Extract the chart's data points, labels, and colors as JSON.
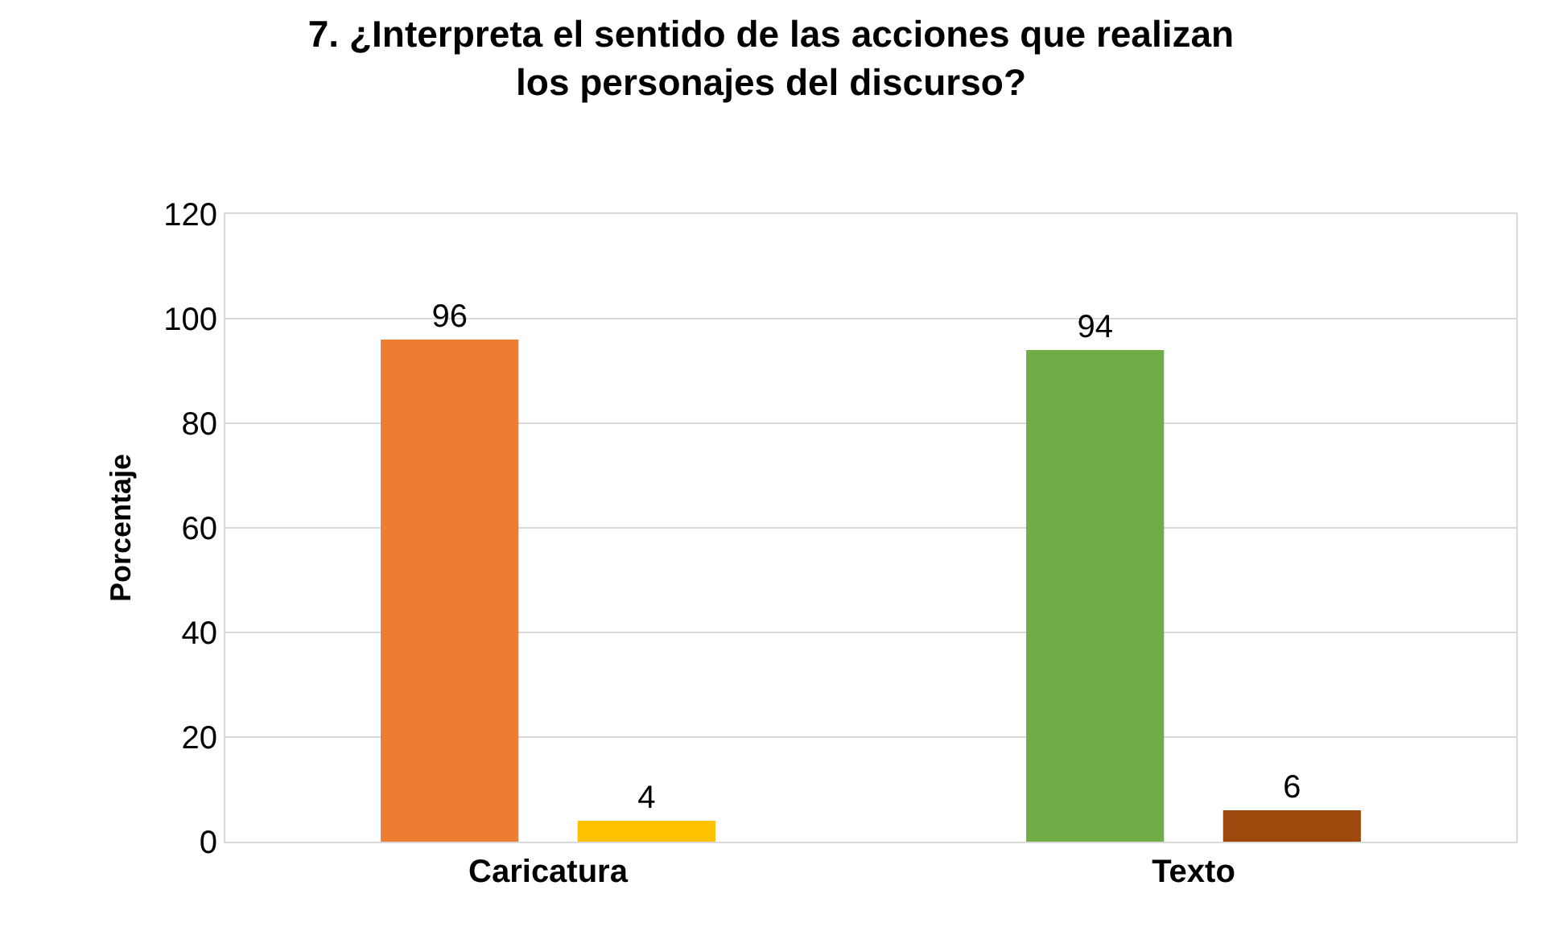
{
  "chart_data": {
    "type": "bar",
    "title": "7. ¿Interpreta el sentido de las acciones que realizan\nlos personajes del discurso?",
    "ylabel": "Porcentaje",
    "categories": [
      "Caricatura",
      "Texto"
    ],
    "series": [
      {
        "colors": [
          "#ed7d31",
          "#70ad47"
        ],
        "values": [
          96,
          94
        ]
      },
      {
        "colors": [
          "#ffc000",
          "#9e480e"
        ],
        "values": [
          4,
          6
        ]
      }
    ],
    "ylim": [
      0,
      120
    ],
    "yticks": [
      0,
      20,
      40,
      60,
      80,
      100,
      120
    ],
    "grid": "y",
    "data_labels": true
  }
}
